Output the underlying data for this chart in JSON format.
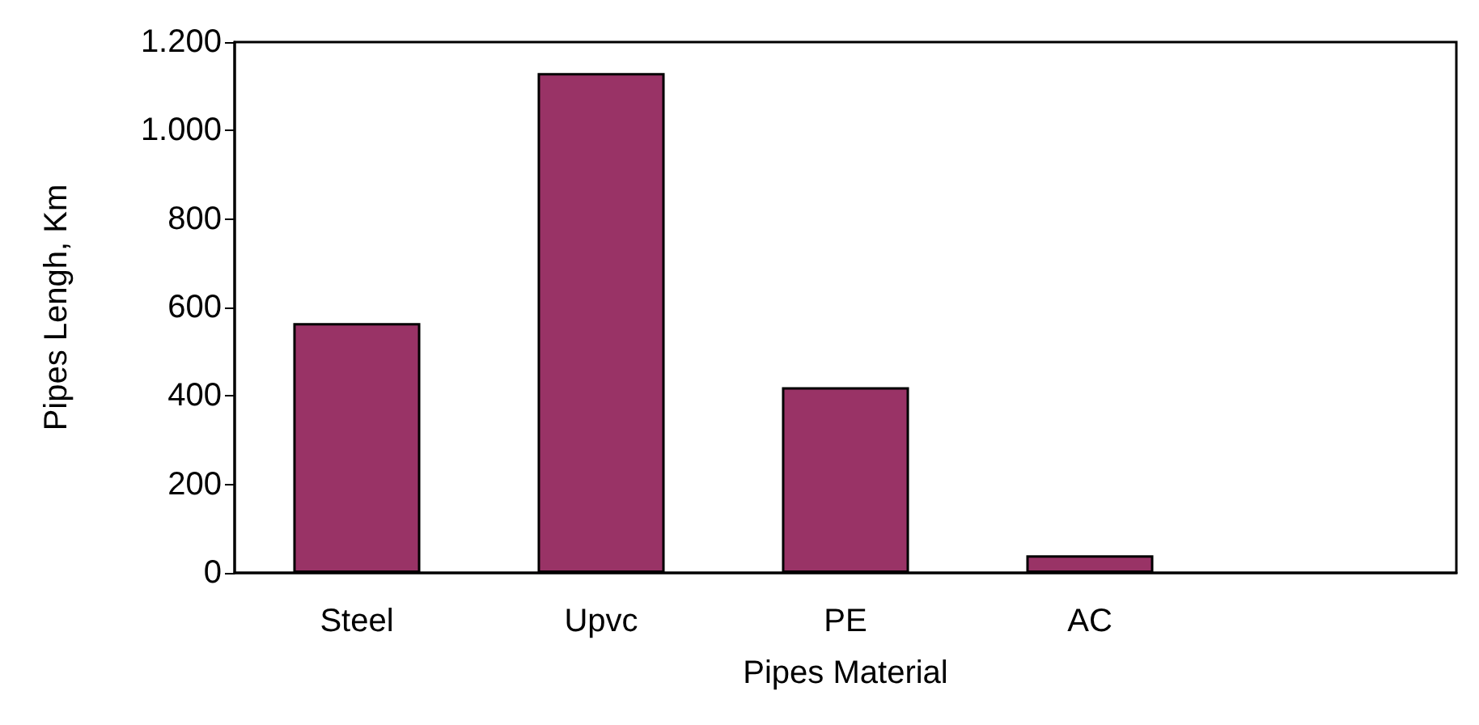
{
  "chart_data": {
    "type": "bar",
    "xlabel": "Pipes Material",
    "ylabel": "Pipes Lengh, Km",
    "categories": [
      "Steel",
      "Upvc",
      "PE",
      "AC",
      null
    ],
    "series": [
      {
        "color": "#993366",
        "values": [
          565,
          1130,
          420,
          40,
          null
        ]
      }
    ],
    "ylim": [
      0,
      1200
    ],
    "yticks": [
      0,
      200,
      400,
      600,
      800,
      {
        "value": 1000,
        "label": "1.000"
      },
      {
        "value": 1200,
        "label": "1.200"
      }
    ],
    "grid": false
  }
}
